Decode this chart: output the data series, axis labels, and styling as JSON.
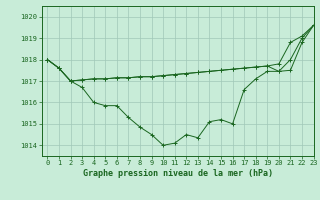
{
  "title": "Graphe pression niveau de la mer (hPa)",
  "background_color": "#c8ecd8",
  "grid_color": "#a0c8b8",
  "line_color": "#1a6620",
  "xlim": [
    -0.5,
    23
  ],
  "ylim": [
    1013.5,
    1020.5
  ],
  "yticks": [
    1014,
    1015,
    1016,
    1017,
    1018,
    1019,
    1020
  ],
  "xticks": [
    0,
    1,
    2,
    3,
    4,
    5,
    6,
    7,
    8,
    9,
    10,
    11,
    12,
    13,
    14,
    15,
    16,
    17,
    18,
    19,
    20,
    21,
    22,
    23
  ],
  "series": [
    [
      1018.0,
      1017.6,
      1017.0,
      1016.7,
      1016.0,
      1015.85,
      1015.85,
      1015.3,
      1014.85,
      1014.5,
      1014.0,
      1014.1,
      1014.5,
      1014.35,
      1015.1,
      1015.2,
      1015.0,
      1016.6,
      1017.1,
      1017.45,
      1017.45,
      1018.0,
      1019.0,
      1019.6
    ],
    [
      1018.0,
      1017.6,
      1017.0,
      1017.05,
      1017.1,
      1017.1,
      1017.15,
      1017.15,
      1017.2,
      1017.2,
      1017.25,
      1017.3,
      1017.35,
      1017.4,
      1017.45,
      1017.5,
      1017.55,
      1017.6,
      1017.65,
      1017.7,
      1017.8,
      1018.8,
      1019.1,
      1019.6
    ],
    [
      1018.0,
      1017.6,
      1017.0,
      1017.05,
      1017.1,
      1017.1,
      1017.15,
      1017.15,
      1017.2,
      1017.2,
      1017.25,
      1017.3,
      1017.35,
      1017.4,
      1017.45,
      1017.5,
      1017.55,
      1017.6,
      1017.65,
      1017.7,
      1017.45,
      1017.5,
      1018.8,
      1019.6
    ]
  ]
}
